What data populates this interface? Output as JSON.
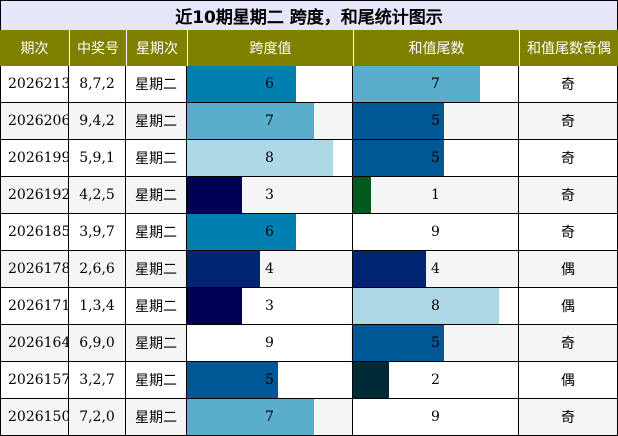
{
  "title": "近10期星期二 跨度，和尾统计图示",
  "headers": [
    "期次",
    "中奖号",
    "星期次",
    "跨度值",
    "和值尾数",
    "和值尾数奇偶"
  ],
  "chart_data": {
    "type": "table",
    "title": "近10期星期二 跨度，和尾统计图示",
    "columns": [
      "期次",
      "中奖号",
      "星期次",
      "跨度值",
      "和值尾数",
      "和值尾数奇偶"
    ],
    "bar_max": 9,
    "rows": [
      {
        "period": "2026213",
        "numbers": "8,7,2",
        "weekday": "星期二",
        "span": 6,
        "sum_tail": 7,
        "parity": "奇"
      },
      {
        "period": "2026206",
        "numbers": "9,4,2",
        "weekday": "星期二",
        "span": 7,
        "sum_tail": 5,
        "parity": "奇"
      },
      {
        "period": "2026199",
        "numbers": "5,9,1",
        "weekday": "星期二",
        "span": 8,
        "sum_tail": 5,
        "parity": "奇"
      },
      {
        "period": "2026192",
        "numbers": "4,2,5",
        "weekday": "星期二",
        "span": 3,
        "sum_tail": 1,
        "parity": "奇"
      },
      {
        "period": "2026185",
        "numbers": "3,9,7",
        "weekday": "星期二",
        "span": 6,
        "sum_tail": 9,
        "parity": "奇"
      },
      {
        "period": "2026178",
        "numbers": "2,6,6",
        "weekday": "星期二",
        "span": 4,
        "sum_tail": 4,
        "parity": "偶"
      },
      {
        "period": "2026171",
        "numbers": "1,3,4",
        "weekday": "星期二",
        "span": 3,
        "sum_tail": 8,
        "parity": "偶"
      },
      {
        "period": "2026164",
        "numbers": "6,9,0",
        "weekday": "星期二",
        "span": 9,
        "sum_tail": 5,
        "parity": "奇"
      },
      {
        "period": "2026157",
        "numbers": "3,2,7",
        "weekday": "星期二",
        "span": 5,
        "sum_tail": 2,
        "parity": "偶"
      },
      {
        "period": "2026150",
        "numbers": "7,2,0",
        "weekday": "星期二",
        "span": 7,
        "sum_tail": 9,
        "parity": "奇"
      }
    ]
  },
  "value_colors": {
    "0": "#ffffff",
    "1": "#005a1e",
    "2": "#002b36",
    "3": "#000055",
    "4": "#002673",
    "5": "#005796",
    "6": "#0080b0",
    "7": "#5aaecc",
    "8": "#add8e6",
    "9": "#ffffff"
  },
  "row_backgrounds": [
    "#ffffff",
    "#f5f5f5"
  ]
}
